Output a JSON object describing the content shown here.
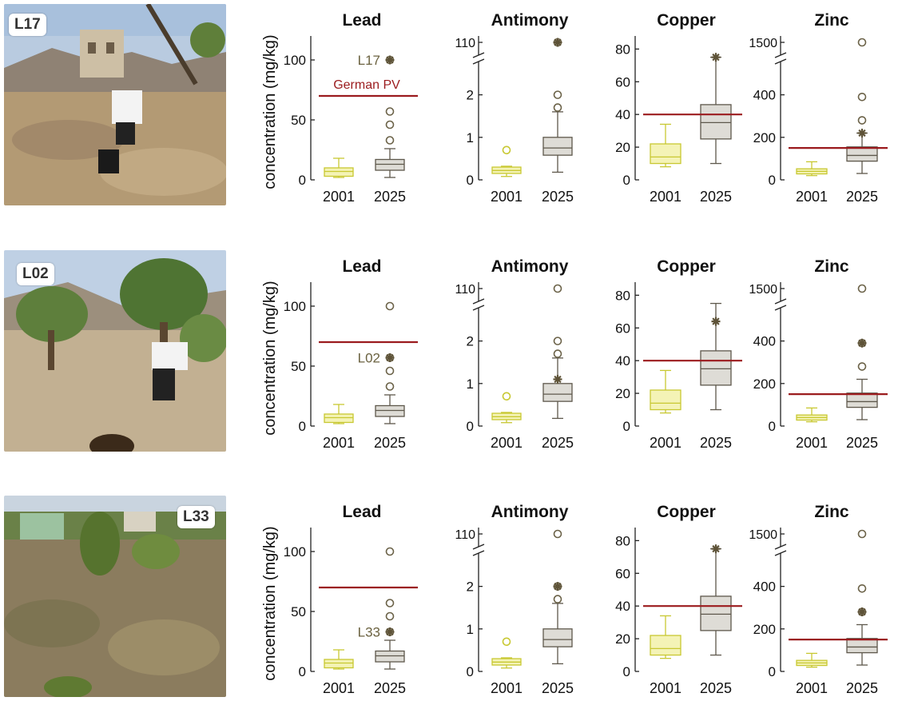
{
  "figure": {
    "ylabel": "concentration (mg/kg)",
    "years": [
      "2001",
      "2025"
    ],
    "pv_label": "German PV",
    "rows": [
      {
        "site": "L17",
        "photo": "rubble-site"
      },
      {
        "site": "L02",
        "photo": "orchard-site"
      },
      {
        "site": "L33",
        "photo": "overgrown-site"
      }
    ]
  },
  "colors": {
    "y2001_fill": "#f4f3b6",
    "y2001_edge": "#c8c832",
    "y2025_fill": "#dedcd6",
    "y2025_edge": "#5e584c",
    "pv_line": "#9b1b1e",
    "site_marker": "#5e5338",
    "site_label": "#6b6240"
  },
  "chart_data": [
    {
      "type": "box",
      "metal": "Lead",
      "pv": 70,
      "ylim": [
        0,
        120
      ],
      "ticks": [
        0,
        50,
        100
      ],
      "break": null,
      "boxes": [
        {
          "year": "2001",
          "whisker_low": 2,
          "q1": 3,
          "median": 7,
          "q3": 10,
          "whisker_high": 18,
          "outliers": []
        },
        {
          "year": "2025",
          "whisker_low": 2,
          "q1": 8,
          "median": 13,
          "q3": 17,
          "whisker_high": 26,
          "outliers": [
            33,
            46,
            57,
            100
          ]
        }
      ],
      "site_markers": {
        "L17": 100,
        "L02": 57,
        "L33": 33
      }
    },
    {
      "type": "box",
      "metal": "Antimony",
      "pv": null,
      "ylim": [
        0,
        2.35
      ],
      "ticks": [
        0,
        1,
        2
      ],
      "break": {
        "at": 2.48,
        "label": "110",
        "value": 110
      },
      "boxes": [
        {
          "year": "2001",
          "whisker_low": 0.08,
          "q1": 0.15,
          "median": 0.22,
          "q3": 0.3,
          "whisker_high": 0.32,
          "outliers": [
            0.7
          ]
        },
        {
          "year": "2025",
          "whisker_low": 0.18,
          "q1": 0.58,
          "median": 0.75,
          "q3": 1.0,
          "whisker_high": 1.6,
          "outliers": [
            1.7,
            2.0,
            110
          ]
        }
      ],
      "site_markers": {
        "L17": 110,
        "L02": 1.1,
        "L33": 2.0
      }
    },
    {
      "type": "box",
      "metal": "Copper",
      "pv": 40,
      "ylim": [
        0,
        88
      ],
      "ticks": [
        0,
        20,
        40,
        60,
        80
      ],
      "break": null,
      "boxes": [
        {
          "year": "2001",
          "whisker_low": 8,
          "q1": 10,
          "median": 14,
          "q3": 22,
          "whisker_high": 34,
          "outliers": []
        },
        {
          "year": "2025",
          "whisker_low": 10,
          "q1": 25,
          "median": 35,
          "q3": 46,
          "whisker_high": 75,
          "outliers": []
        }
      ],
      "site_markers": {
        "L17": 75,
        "L02": 64,
        "L33": 75
      }
    },
    {
      "type": "box",
      "metal": "Zinc",
      "pv": 150,
      "ylim": [
        0,
        470
      ],
      "ticks": [
        0,
        200,
        400
      ],
      "break": {
        "at": 500,
        "label": "1500",
        "value": 1500
      },
      "boxes": [
        {
          "year": "2001",
          "whisker_low": 20,
          "q1": 28,
          "median": 40,
          "q3": 52,
          "whisker_high": 85,
          "outliers": []
        },
        {
          "year": "2025",
          "whisker_low": 30,
          "q1": 88,
          "median": 115,
          "q3": 155,
          "whisker_high": 220,
          "outliers": [
            280,
            390,
            1500
          ]
        }
      ],
      "site_markers": {
        "L17": 220,
        "L02": 390,
        "L33": 280
      }
    }
  ]
}
